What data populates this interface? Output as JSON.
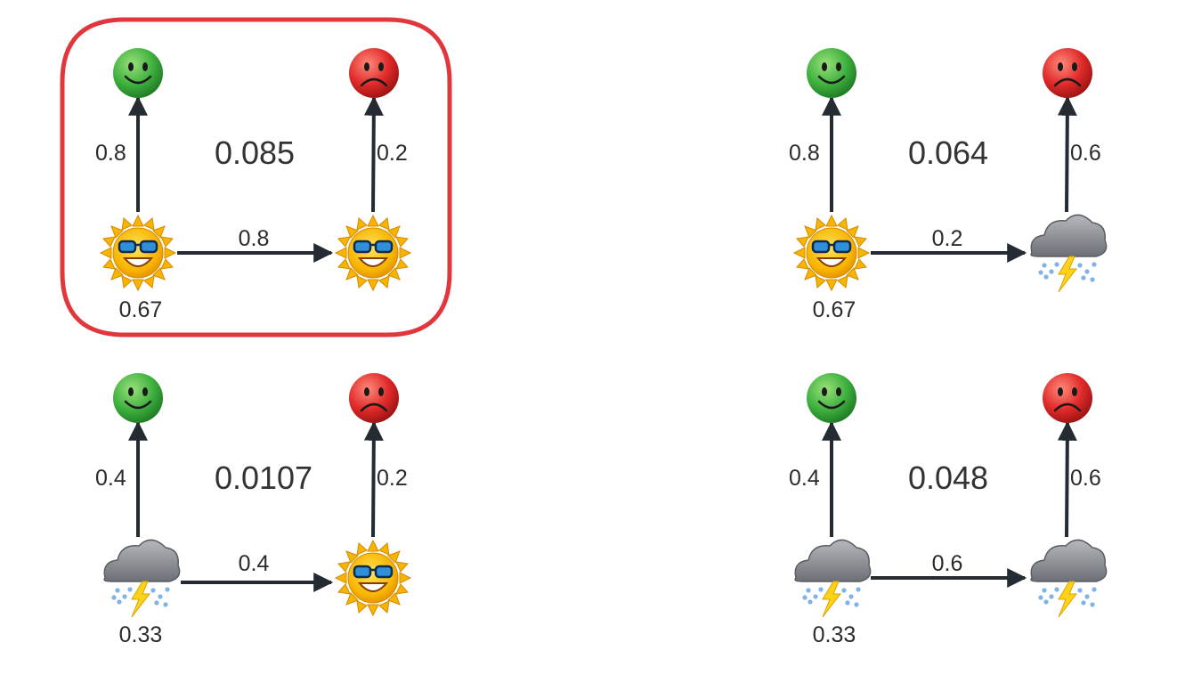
{
  "highlight_color": "#e0363c",
  "arrow_color": "#252b33",
  "colors": {
    "happy": "#3fb13f",
    "sad": "#e02a2a",
    "sun": "#f7b500",
    "cloud": "#8d9095",
    "bolt": "#ffd21a"
  },
  "diagrams": [
    {
      "highlighted": true,
      "start_state": "sunny-icon",
      "next_state": "sunny-icon",
      "start_prob": "0.67",
      "transition_prob": "0.8",
      "start_emission_prob": "0.8",
      "next_emission_prob": "0.2",
      "start_observation": "happy-face-icon",
      "next_observation": "sad-face-icon",
      "joint_prob": "0.085"
    },
    {
      "highlighted": false,
      "start_state": "sunny-icon",
      "next_state": "rainy-icon",
      "start_prob": "0.67",
      "transition_prob": "0.2",
      "start_emission_prob": "0.8",
      "next_emission_prob": "0.6",
      "start_observation": "happy-face-icon",
      "next_observation": "sad-face-icon",
      "joint_prob": "0.064"
    },
    {
      "highlighted": false,
      "start_state": "rainy-icon",
      "next_state": "sunny-icon",
      "start_prob": "0.33",
      "transition_prob": "0.4",
      "start_emission_prob": "0.4",
      "next_emission_prob": "0.2",
      "start_observation": "happy-face-icon",
      "next_observation": "sad-face-icon",
      "joint_prob": "0.0107"
    },
    {
      "highlighted": false,
      "start_state": "rainy-icon",
      "next_state": "rainy-icon",
      "start_prob": "0.33",
      "transition_prob": "0.6",
      "start_emission_prob": "0.4",
      "next_emission_prob": "0.6",
      "start_observation": "happy-face-icon",
      "next_observation": "sad-face-icon",
      "joint_prob": "0.048"
    }
  ]
}
